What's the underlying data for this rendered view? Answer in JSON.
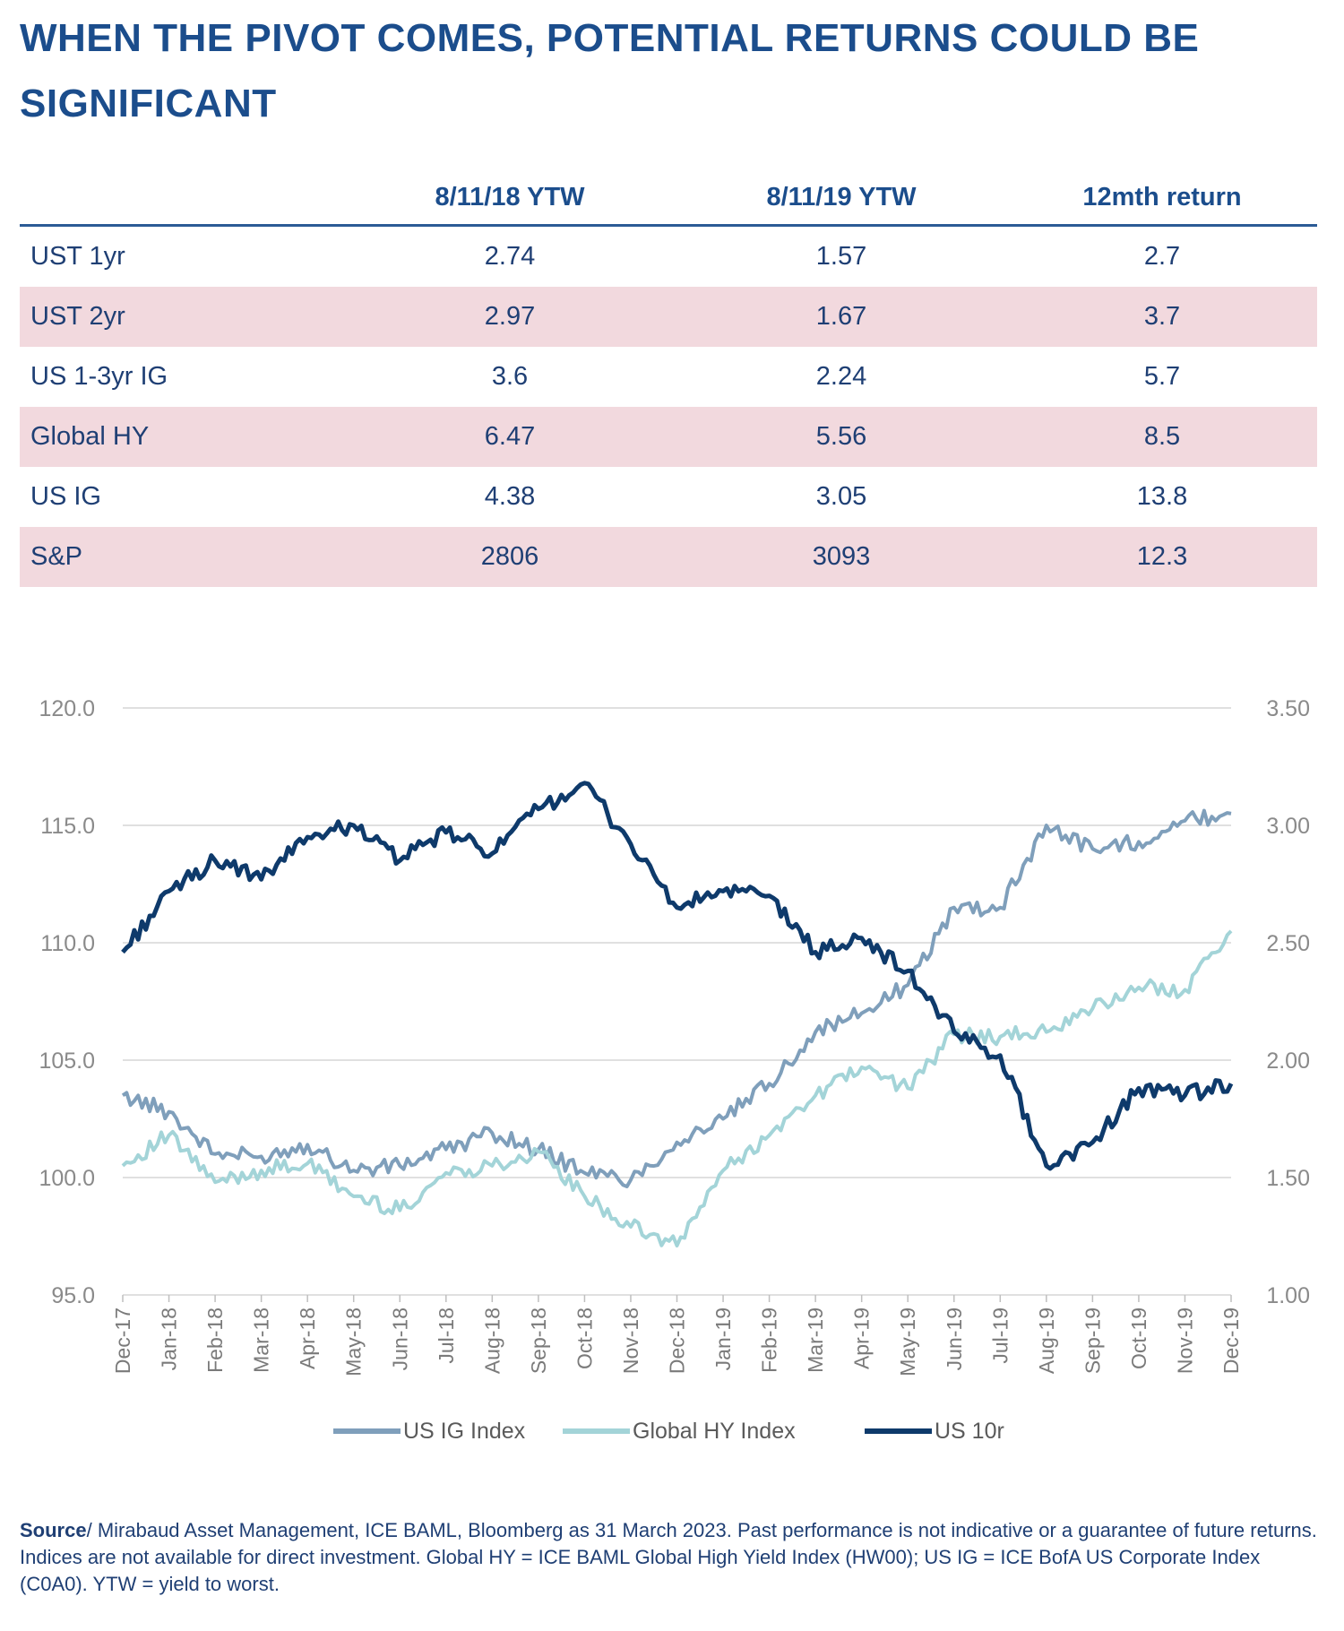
{
  "title": "WHEN THE PIVOT COMES, POTENTIAL RETURNS COULD BE SIGNIFICANT",
  "table": {
    "headers": [
      "",
      "8/11/18 YTW",
      "8/11/19 YTW",
      "12mth return"
    ],
    "rows": [
      {
        "label": "UST 1yr",
        "v1": "2.74",
        "v2": "1.57",
        "v3": "2.7"
      },
      {
        "label": "UST 2yr",
        "v1": "2.97",
        "v2": "1.67",
        "v3": "3.7"
      },
      {
        "label": "US 1-3yr IG",
        "v1": "3.6",
        "v2": "2.24",
        "v3": "5.7"
      },
      {
        "label": "Global HY",
        "v1": "6.47",
        "v2": "5.56",
        "v3": "8.5"
      },
      {
        "label": "US IG",
        "v1": "4.38",
        "v2": "3.05",
        "v3": "13.8"
      },
      {
        "label": "S&P",
        "v1": "2806",
        "v2": "3093",
        "v3": "12.3"
      }
    ]
  },
  "chart_data": {
    "type": "line",
    "x": [
      "Dec-17",
      "Jan-18",
      "Feb-18",
      "Mar-18",
      "Apr-18",
      "May-18",
      "Jun-18",
      "Jul-18",
      "Aug-18",
      "Sep-18",
      "Oct-18",
      "Nov-18",
      "Dec-18",
      "Jan-19",
      "Feb-19",
      "Mar-19",
      "Apr-19",
      "May-19",
      "Jun-19",
      "Jul-19",
      "Aug-19",
      "Sep-19",
      "Oct-19",
      "Nov-19",
      "Dec-19"
    ],
    "y_left_ticks": [
      "95.0",
      "100.0",
      "105.0",
      "110.0",
      "115.0",
      "120.0"
    ],
    "y_left_range": [
      95,
      120
    ],
    "y_right_ticks": [
      "1.00",
      "1.50",
      "2.00",
      "2.50",
      "3.00",
      "3.50"
    ],
    "y_right_range": [
      1.0,
      3.5
    ],
    "grid": "horizontal",
    "legend_position": "bottom",
    "series": [
      {
        "name": "US IG Index",
        "axis": "left",
        "color": "#7f9fbb",
        "values": [
          103.5,
          102.8,
          101.0,
          100.9,
          101.4,
          100.3,
          100.5,
          101.2,
          101.9,
          101.2,
          100.2,
          99.9,
          101.5,
          102.5,
          104.0,
          106.2,
          107.0,
          108.2,
          111.5,
          111.5,
          115.0,
          114.0,
          114.3,
          115.2,
          115.5
        ]
      },
      {
        "name": "Global HY Index",
        "axis": "left",
        "color": "#a3d4d8",
        "values": [
          100.5,
          101.8,
          99.8,
          100.3,
          100.6,
          99.2,
          98.6,
          100.2,
          100.5,
          101.1,
          99.2,
          97.9,
          97.1,
          100.3,
          101.8,
          103.5,
          104.7,
          103.8,
          106.1,
          106.0,
          106.2,
          107.2,
          108.1,
          108.0,
          110.5
        ]
      },
      {
        "name": "US 10r",
        "axis": "right",
        "color": "#0e3a6b",
        "values": [
          2.46,
          2.72,
          2.85,
          2.77,
          2.95,
          3.0,
          2.85,
          2.97,
          2.88,
          3.07,
          3.18,
          2.92,
          2.65,
          2.72,
          2.7,
          2.46,
          2.52,
          2.38,
          2.12,
          2.02,
          1.55,
          1.65,
          1.88,
          1.85,
          1.9
        ]
      }
    ]
  },
  "legend_labels": [
    "US IG Index",
    "Global HY Index",
    "US 10r"
  ],
  "source": {
    "label": "Source",
    "text": "/ Mirabaud Asset Management, ICE BAML, Bloomberg as 31 March 2023. Past performance is not indicative or a guarantee of future returns. Indices are not available for direct investment. Global HY = ICE BAML Global High Yield Index (HW00); US IG = ICE BofA US Corporate Index (C0A0). YTW = yield to worst."
  }
}
